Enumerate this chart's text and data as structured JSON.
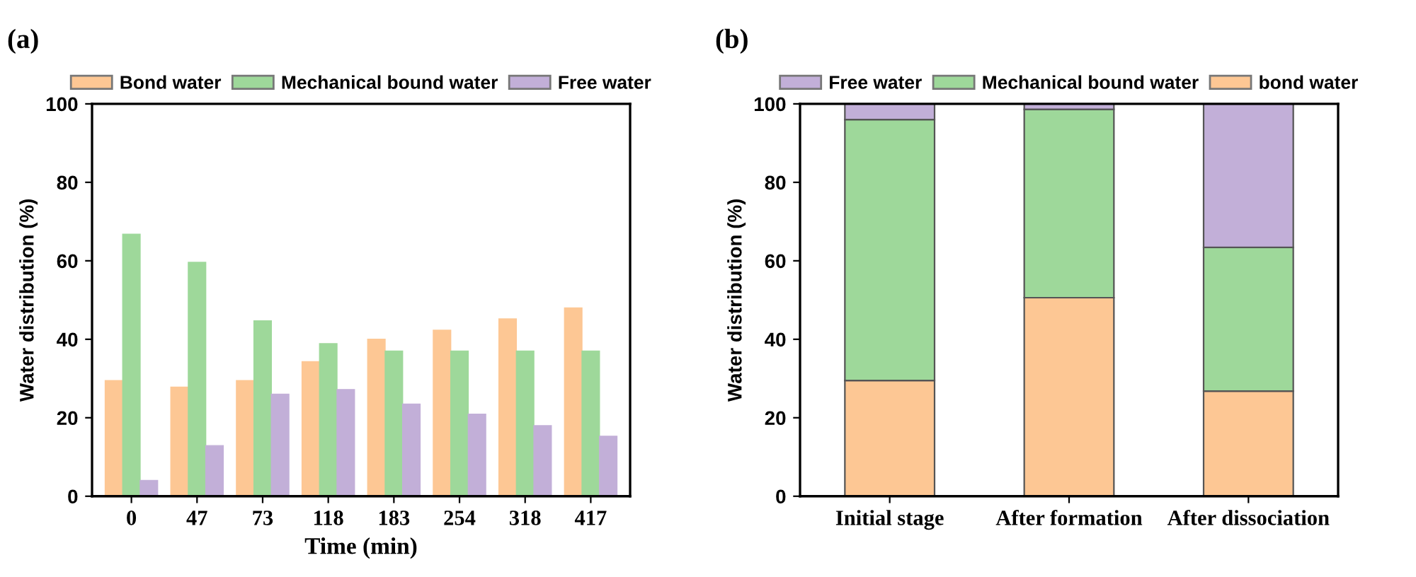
{
  "chart_data": [
    {
      "type": "bar",
      "title": "(a)",
      "xlabel": "Time (min)",
      "ylabel": "Water distribution (%)",
      "categories": [
        "0",
        "47",
        "73",
        "118",
        "183",
        "254",
        "318",
        "417"
      ],
      "series": [
        {
          "name": "Bond water",
          "color": "#fdc794",
          "values": [
            29.5,
            27.8,
            29.5,
            34.3,
            40,
            42.3,
            45.2,
            48
          ]
        },
        {
          "name": "Mechanical bound water",
          "color": "#9ed89a",
          "values": [
            66.8,
            59.6,
            44.7,
            38.9,
            37,
            37,
            37,
            37
          ]
        },
        {
          "name": "Free water",
          "color": "#c2afd8",
          "values": [
            4,
            12.9,
            26,
            27.2,
            23.5,
            20.9,
            18,
            15.3
          ]
        }
      ],
      "ylim": [
        0,
        100
      ],
      "yticks": [
        0,
        20,
        40,
        60,
        80,
        100
      ],
      "legend": "top",
      "grid": false
    },
    {
      "type": "bar",
      "title": "(b)",
      "ylabel": "Water distribution (%)",
      "categories": [
        "Initial stage",
        "After formation",
        "After dissociation"
      ],
      "stacked": true,
      "series": [
        {
          "name": "bond water",
          "color": "#fdc794",
          "values": [
            29.5,
            50.6,
            26.8
          ]
        },
        {
          "name": "Mechanical bound water",
          "color": "#9ed89a",
          "values": [
            66.5,
            48,
            36.6
          ]
        },
        {
          "name": "Free water",
          "color": "#c2afd8",
          "values": [
            4,
            1.4,
            36.6
          ]
        }
      ],
      "ylim": [
        0,
        100
      ],
      "yticks": [
        0,
        20,
        40,
        60,
        80,
        100
      ],
      "legend": "top",
      "grid": false
    }
  ]
}
